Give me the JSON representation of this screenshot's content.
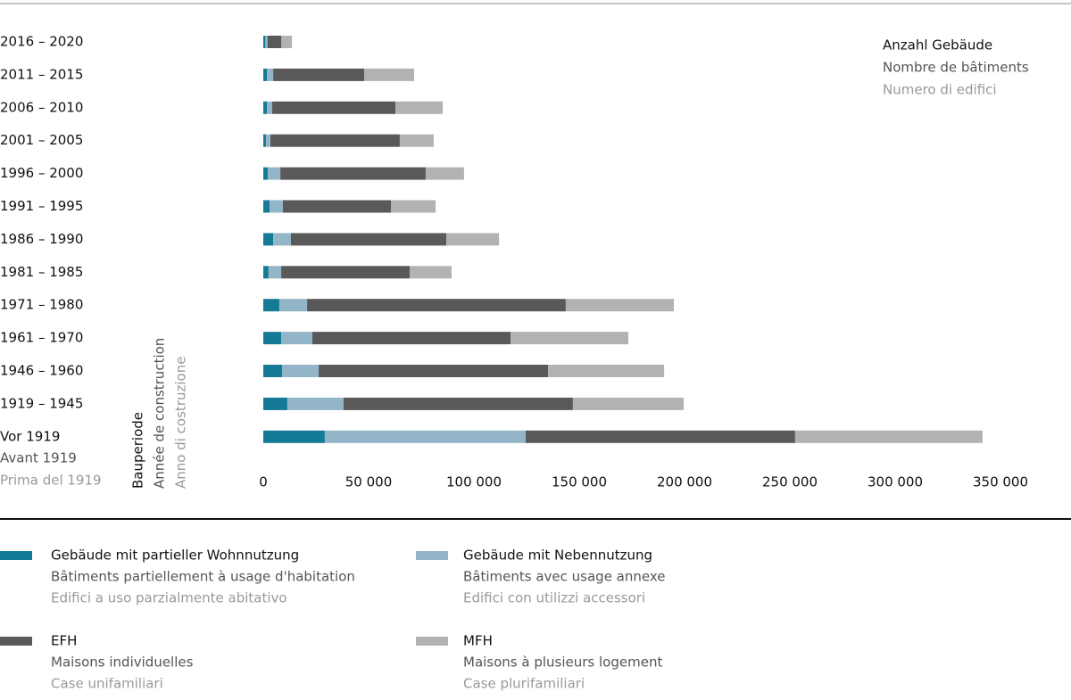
{
  "chart_data": {
    "type": "stacked-bar-horizontal",
    "categories": [
      "2016 – 2020",
      "2011 – 2015",
      "2006 – 2010",
      "2001 – 2005",
      "1996 – 2000",
      "1991 – 1995",
      "1986 – 1990",
      "1981 – 1985",
      "1971 – 1980",
      "1961 – 1970",
      "1946 – 1960",
      "1919 – 1945",
      "Vor 1919"
    ],
    "last_category_lines": [
      "Avant 1919",
      "Prima del 1919"
    ],
    "y_label_lines": [
      "Bauperiode",
      "Année de construction",
      "Anno di costruzione"
    ],
    "value_label_lines": [
      "Anzahl Gebäude",
      "Nombre de bâtiments",
      "Numero di edifici"
    ],
    "series": [
      {
        "name": "Gebäude mit partieller Wohnnutzung",
        "name_lines": [
          "Bâtiments partiellement à usage d'habitation",
          "Edifici a uso parzialmente abitativo"
        ],
        "color": "#157a96",
        "values": [
          1000,
          1700,
          1700,
          1300,
          2100,
          3000,
          4700,
          2500,
          7600,
          8500,
          8900,
          11400,
          29200
        ]
      },
      {
        "name": "Gebäude mit Nebennutzung",
        "name_lines": [
          "Bâtiments avec usage annexe",
          "Edifici con utilizzi accessori"
        ],
        "color": "#93b5c8",
        "values": [
          1000,
          3000,
          2500,
          2100,
          6000,
          6300,
          8400,
          6000,
          13200,
          14800,
          17400,
          26700,
          95400
        ]
      },
      {
        "name": "EFH",
        "name_lines": [
          "Maisons individuelles",
          "Case unifamiliari"
        ],
        "color": "#595959",
        "values": [
          6600,
          43200,
          58500,
          61400,
          69000,
          51300,
          73800,
          61000,
          122800,
          94100,
          108900,
          108900,
          127900
        ]
      },
      {
        "name": "MFH",
        "name_lines": [
          "Maisons à plusieurs logement",
          "Case plurifamiliari"
        ],
        "color": "#b2b2b2",
        "values": [
          5000,
          23700,
          22500,
          16100,
          18200,
          21200,
          25000,
          19900,
          51300,
          55900,
          55100,
          52600,
          89000
        ]
      }
    ],
    "xlim": [
      0,
      350000
    ],
    "xticks": [
      0,
      {
        "value": 50000,
        "label": "50 000"
      },
      {
        "value": 100000,
        "label": "100 000"
      },
      {
        "value": 150000,
        "label": "150 000"
      },
      {
        "value": 200000,
        "label": "200 000"
      },
      {
        "value": 250000,
        "label": "250 000"
      },
      {
        "value": 300000,
        "label": "300 000"
      },
      {
        "value": 350000,
        "label": "350 000"
      }
    ]
  }
}
